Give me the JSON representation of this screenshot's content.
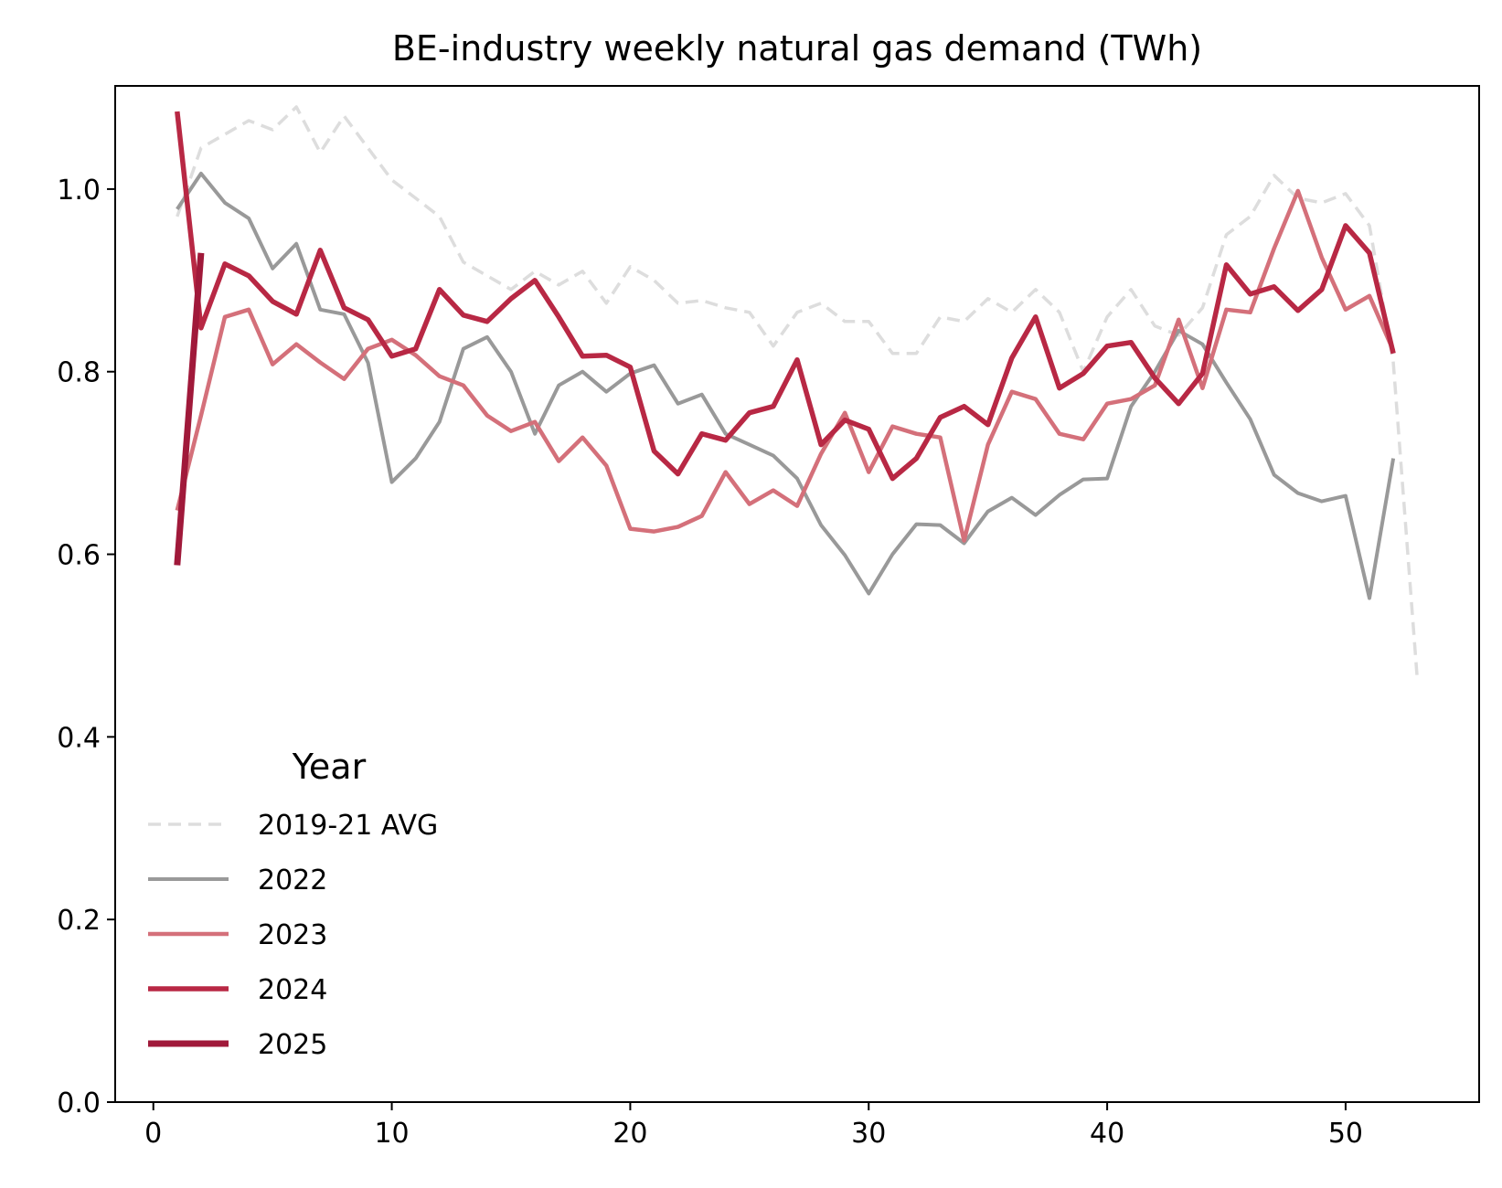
{
  "chart_data": {
    "type": "line",
    "title": "BE-industry weekly natural gas demand (TWh)",
    "xlabel": "",
    "ylabel": "",
    "xlim": [
      -1.6,
      55.6
    ],
    "ylim": [
      0.0,
      1.113
    ],
    "x_ticks": [
      0,
      10,
      20,
      30,
      40,
      50
    ],
    "y_ticks": [
      0.0,
      0.2,
      0.4,
      0.6,
      0.8,
      1.0
    ],
    "x_tick_labels": [
      "0",
      "10",
      "20",
      "30",
      "40",
      "50"
    ],
    "y_tick_labels": [
      "0.0",
      "0.2",
      "0.4",
      "0.6",
      "0.8",
      "1.0"
    ],
    "grid": false,
    "legend": {
      "title": "Year",
      "placement": "lower-left"
    },
    "series": [
      {
        "name": "2019-21 AVG",
        "color": "#dddddd",
        "style": "dashed",
        "x": [
          1,
          2,
          3,
          4,
          5,
          6,
          7,
          8,
          9,
          10,
          11,
          12,
          13,
          14,
          15,
          16,
          17,
          18,
          19,
          20,
          21,
          22,
          23,
          24,
          25,
          26,
          27,
          28,
          29,
          30,
          31,
          32,
          33,
          34,
          35,
          36,
          37,
          38,
          39,
          40,
          41,
          42,
          43,
          44,
          45,
          46,
          47,
          48,
          49,
          50,
          51,
          52,
          53
        ],
        "values": [
          0.97,
          1.045,
          1.06,
          1.075,
          1.065,
          1.09,
          1.04,
          1.08,
          1.045,
          1.01,
          0.99,
          0.97,
          0.92,
          0.905,
          0.89,
          0.91,
          0.895,
          0.91,
          0.875,
          0.915,
          0.9,
          0.875,
          0.878,
          0.87,
          0.865,
          0.828,
          0.865,
          0.875,
          0.855,
          0.855,
          0.82,
          0.82,
          0.86,
          0.855,
          0.88,
          0.865,
          0.89,
          0.865,
          0.8,
          0.86,
          0.89,
          0.85,
          0.84,
          0.87,
          0.95,
          0.97,
          1.015,
          0.99,
          0.985,
          0.995,
          0.96,
          0.81,
          0.465
        ]
      },
      {
        "name": "2022",
        "color": "#999999",
        "style": "solid",
        "x": [
          1,
          2,
          3,
          4,
          5,
          6,
          7,
          8,
          9,
          10,
          11,
          12,
          13,
          14,
          15,
          16,
          17,
          18,
          19,
          20,
          21,
          22,
          23,
          24,
          25,
          26,
          27,
          28,
          29,
          30,
          31,
          32,
          33,
          34,
          35,
          36,
          37,
          38,
          39,
          40,
          41,
          42,
          43,
          44,
          45,
          46,
          47,
          48,
          49,
          50,
          51,
          52
        ],
        "values": [
          0.978,
          1.017,
          0.985,
          0.968,
          0.913,
          0.94,
          0.868,
          0.863,
          0.81,
          0.679,
          0.705,
          0.745,
          0.825,
          0.838,
          0.8,
          0.732,
          0.785,
          0.8,
          0.778,
          0.798,
          0.807,
          0.765,
          0.775,
          0.732,
          0.72,
          0.708,
          0.683,
          0.632,
          0.599,
          0.557,
          0.6,
          0.633,
          0.632,
          0.612,
          0.647,
          0.662,
          0.643,
          0.665,
          0.682,
          0.683,
          0.762,
          0.8,
          0.845,
          0.83,
          0.788,
          0.748,
          0.687,
          0.667,
          0.658,
          0.664,
          0.552,
          0.705
        ]
      },
      {
        "name": "2023",
        "color": "#d4707a",
        "style": "solid",
        "x": [
          1,
          2,
          3,
          4,
          5,
          6,
          7,
          8,
          9,
          10,
          11,
          12,
          13,
          14,
          15,
          16,
          17,
          18,
          19,
          20,
          21,
          22,
          23,
          24,
          25,
          26,
          27,
          28,
          29,
          30,
          31,
          32,
          33,
          34,
          35,
          36,
          37,
          38,
          39,
          40,
          41,
          42,
          43,
          44,
          45,
          46,
          47,
          48,
          49,
          50,
          51,
          52
        ],
        "values": [
          0.648,
          0.752,
          0.86,
          0.868,
          0.808,
          0.83,
          0.81,
          0.792,
          0.825,
          0.835,
          0.818,
          0.795,
          0.785,
          0.752,
          0.735,
          0.745,
          0.702,
          0.728,
          0.697,
          0.628,
          0.625,
          0.63,
          0.642,
          0.69,
          0.655,
          0.67,
          0.653,
          0.71,
          0.755,
          0.69,
          0.74,
          0.732,
          0.728,
          0.615,
          0.72,
          0.778,
          0.77,
          0.732,
          0.726,
          0.765,
          0.77,
          0.785,
          0.857,
          0.782,
          0.868,
          0.865,
          0.935,
          0.998,
          0.925,
          0.868,
          0.883,
          0.823
        ]
      },
      {
        "name": "2024",
        "color": "#b82844",
        "style": "solid",
        "x": [
          1,
          2,
          3,
          4,
          5,
          6,
          7,
          8,
          9,
          10,
          11,
          12,
          13,
          14,
          15,
          16,
          17,
          18,
          19,
          20,
          21,
          22,
          23,
          24,
          25,
          26,
          27,
          28,
          29,
          30,
          31,
          32,
          33,
          34,
          35,
          36,
          37,
          38,
          39,
          40,
          41,
          42,
          43,
          44,
          45,
          46,
          47,
          48,
          49,
          50,
          51,
          52
        ],
        "values": [
          1.085,
          0.848,
          0.918,
          0.905,
          0.877,
          0.863,
          0.933,
          0.87,
          0.857,
          0.817,
          0.825,
          0.89,
          0.862,
          0.855,
          0.88,
          0.9,
          0.86,
          0.817,
          0.818,
          0.805,
          0.713,
          0.688,
          0.732,
          0.725,
          0.755,
          0.762,
          0.813,
          0.72,
          0.747,
          0.737,
          0.683,
          0.705,
          0.75,
          0.762,
          0.742,
          0.815,
          0.86,
          0.782,
          0.798,
          0.828,
          0.832,
          0.793,
          0.765,
          0.798,
          0.917,
          0.885,
          0.893,
          0.867,
          0.89,
          0.96,
          0.93,
          0.82
        ]
      },
      {
        "name": "2025",
        "color": "#a0193a",
        "style": "solid",
        "x": [
          1,
          2
        ],
        "values": [
          0.588,
          0.93
        ]
      }
    ]
  }
}
